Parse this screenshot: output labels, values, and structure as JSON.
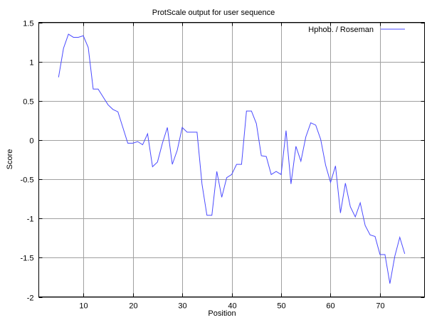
{
  "chart_data": {
    "type": "line",
    "title": "ProtScale output for user sequence",
    "xlabel": "Position",
    "ylabel": "Score",
    "xlim": [
      1,
      79
    ],
    "ylim": [
      -2,
      1.5
    ],
    "xticks": [
      10,
      20,
      30,
      40,
      50,
      60,
      70
    ],
    "yticks": [
      -2,
      -1.5,
      -1,
      -0.5,
      0,
      0.5,
      1,
      1.5
    ],
    "xtick_labels": [
      "10",
      "20",
      "30",
      "40",
      "50",
      "60",
      "70"
    ],
    "ytick_labels": [
      "-2",
      "-1.5",
      "-1",
      "-0.5",
      "0",
      "0.5",
      "1",
      "1.5"
    ],
    "grid": true,
    "legend_position": "top-right",
    "series": [
      {
        "name": "Hphob.  /  Roseman",
        "color": "#4a4aff",
        "x": [
          5,
          6,
          7,
          8,
          9,
          10,
          11,
          12,
          13,
          14,
          15,
          16,
          17,
          18,
          19,
          20,
          21,
          22,
          23,
          24,
          25,
          26,
          27,
          28,
          29,
          30,
          31,
          32,
          33,
          34,
          35,
          36,
          37,
          38,
          39,
          40,
          41,
          42,
          43,
          44,
          45,
          46,
          47,
          48,
          49,
          50,
          51,
          52,
          53,
          54,
          55,
          56,
          57,
          58,
          59,
          60,
          61,
          62,
          63,
          64,
          65,
          66,
          67,
          68,
          69,
          70,
          71,
          72,
          73,
          74,
          75
        ],
        "y": [
          0.8,
          1.17,
          1.35,
          1.31,
          1.31,
          1.33,
          1.18,
          0.65,
          0.65,
          0.55,
          0.45,
          0.39,
          0.36,
          0.16,
          -0.04,
          -0.04,
          -0.02,
          -0.06,
          0.08,
          -0.34,
          -0.28,
          -0.04,
          0.16,
          -0.31,
          -0.13,
          0.16,
          0.1,
          0.1,
          0.1,
          -0.56,
          -0.96,
          -0.96,
          -0.4,
          -0.73,
          -0.48,
          -0.44,
          -0.31,
          -0.31,
          0.37,
          0.37,
          0.21,
          -0.2,
          -0.21,
          -0.44,
          -0.4,
          -0.44,
          0.12,
          -0.56,
          -0.08,
          -0.27,
          0.04,
          0.22,
          0.19,
          0.01,
          -0.32,
          -0.54,
          -0.33,
          -0.93,
          -0.55,
          -0.85,
          -0.98,
          -0.8,
          -1.09,
          -1.21,
          -1.23,
          -1.46,
          -1.46,
          -1.83,
          -1.48,
          -1.24,
          -1.45
        ]
      }
    ]
  }
}
